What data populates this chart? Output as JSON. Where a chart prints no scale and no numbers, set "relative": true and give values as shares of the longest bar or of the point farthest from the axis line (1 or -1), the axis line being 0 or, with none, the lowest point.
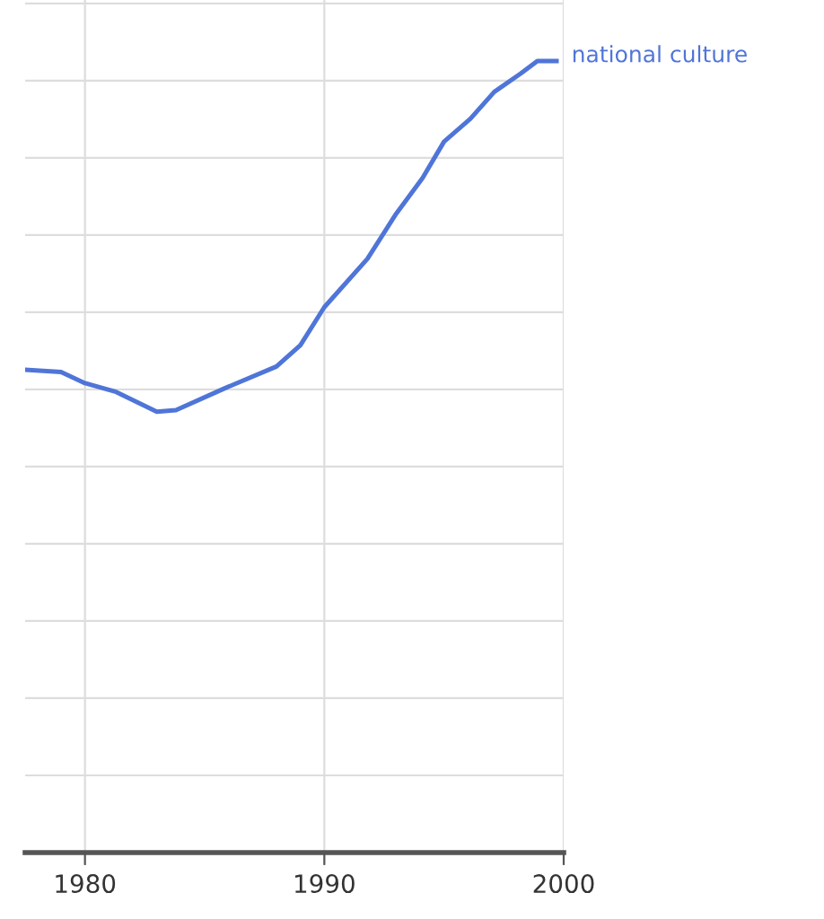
{
  "chart_data": {
    "type": "line",
    "relative": true,
    "x": [
      1977.5,
      1979,
      1980,
      1981.3,
      1983,
      1983.8,
      1985.8,
      1988,
      1989,
      1990,
      1991.8,
      1993,
      1994.1,
      1995,
      1996.1,
      1997.1,
      1998.2,
      1998.9,
      1999.7
    ],
    "series": [
      {
        "name": "national culture",
        "color": "#4f75d8",
        "values": [
          0.61,
          0.607,
          0.593,
          0.582,
          0.557,
          0.559,
          0.586,
          0.614,
          0.641,
          0.689,
          0.75,
          0.807,
          0.852,
          0.898,
          0.927,
          0.961,
          0.984,
          1,
          1
        ]
      }
    ],
    "xlim": [
      1977.5,
      2000
    ],
    "xticks": [
      1980,
      1990,
      2000
    ],
    "grid": true,
    "line_style": "solid",
    "marker": "none"
  }
}
